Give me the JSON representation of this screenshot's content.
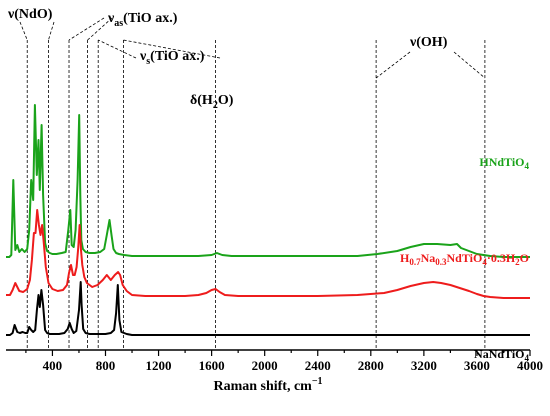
{
  "chart_data": {
    "type": "line",
    "xlabel": "Raman shift, cm",
    "xlabel_sup": "−1",
    "xlim": [
      50,
      4000
    ],
    "xticks": [
      400,
      800,
      1200,
      1600,
      2000,
      2400,
      2800,
      3200,
      3600,
      4000
    ],
    "y_axis_visible": false,
    "grid": false,
    "annotations": [
      {
        "id": "nu-ndo",
        "base": "ν(NdO)",
        "sub": "",
        "suffix": "",
        "guides": [
          210,
          370
        ]
      },
      {
        "id": "nu-as",
        "base": "ν",
        "sub": "as",
        "suffix": "(TiO ax.)",
        "guides": [
          525,
          665
        ]
      },
      {
        "id": "nu-s",
        "base": "ν",
        "sub": "s",
        "suffix": "(TiO ax.)",
        "guides": [
          745,
          935
        ]
      },
      {
        "id": "delta-h2o",
        "base": "δ(H",
        "sub": "2",
        "suffix": "O)",
        "guides": [
          1630
        ]
      },
      {
        "id": "nu-oh",
        "base": "ν(OH)",
        "sub": "",
        "suffix": "",
        "guides": [
          2840,
          3660
        ]
      }
    ],
    "series": [
      {
        "id": "hndtio4",
        "color": "#1aa31a",
        "label_parts": [
          "HNdTiO",
          "4"
        ],
        "x": [
          50,
          75,
          90,
          105,
          120,
          135,
          150,
          170,
          190,
          210,
          225,
          240,
          255,
          268,
          282,
          295,
          305,
          318,
          330,
          345,
          360,
          380,
          400,
          430,
          470,
          500,
          520,
          535,
          545,
          560,
          575,
          590,
          602,
          610,
          618,
          630,
          650,
          680,
          720,
          760,
          790,
          810,
          830,
          845,
          860,
          880,
          900,
          940,
          1000,
          1100,
          1300,
          1500,
          1600,
          1640,
          1680,
          1750,
          2000,
          2400,
          2700,
          2850,
          3000,
          3100,
          3200,
          3300,
          3400,
          3450,
          3480,
          3520,
          3560,
          3600,
          3650,
          3700,
          3800,
          4000
        ],
        "y": [
          0.78,
          0.78,
          0.8,
          1.55,
          0.85,
          0.9,
          0.83,
          0.86,
          0.83,
          0.86,
          1.05,
          1.55,
          1.35,
          2.3,
          1.6,
          1.95,
          1.45,
          2.1,
          1.4,
          0.92,
          0.84,
          0.82,
          0.81,
          0.81,
          0.82,
          0.83,
          1.05,
          1.25,
          0.9,
          0.88,
          1.05,
          1.55,
          2.2,
          1.4,
          0.95,
          0.86,
          0.83,
          0.82,
          0.82,
          0.83,
          0.86,
          1.0,
          1.15,
          1.0,
          0.86,
          0.82,
          0.81,
          0.8,
          0.79,
          0.79,
          0.79,
          0.79,
          0.8,
          0.82,
          0.8,
          0.79,
          0.79,
          0.79,
          0.79,
          0.81,
          0.84,
          0.88,
          0.91,
          0.91,
          0.9,
          0.91,
          0.87,
          0.85,
          0.83,
          0.81,
          0.8,
          0.79,
          0.78,
          0.78
        ]
      },
      {
        "id": "h07na03",
        "color": "#ee1c1c",
        "label_parts": [
          "H",
          "0.7",
          "Na",
          "0.3",
          "NdTiO",
          "4",
          "·0.3H",
          "2",
          "O"
        ],
        "x": [
          50,
          80,
          100,
          120,
          150,
          180,
          210,
          230,
          245,
          260,
          272,
          285,
          298,
          310,
          322,
          335,
          350,
          370,
          400,
          440,
          480,
          510,
          525,
          540,
          555,
          568,
          582,
          595,
          605,
          615,
          625,
          640,
          660,
          700,
          740,
          780,
          810,
          840,
          870,
          895,
          910,
          930,
          960,
          1000,
          1100,
          1200,
          1300,
          1400,
          1500,
          1560,
          1600,
          1630,
          1660,
          1700,
          1800,
          2000,
          2400,
          2700,
          2900,
          3000,
          3100,
          3200,
          3270,
          3330,
          3400,
          3470,
          3540,
          3600,
          3650,
          3700,
          3800,
          4000
        ],
        "y": [
          0.4,
          0.4,
          0.45,
          0.52,
          0.44,
          0.43,
          0.46,
          0.55,
          0.75,
          1.02,
          1.02,
          1.25,
          1.1,
          1.0,
          1.1,
          0.92,
          0.68,
          0.52,
          0.46,
          0.44,
          0.45,
          0.5,
          0.62,
          0.7,
          0.6,
          0.6,
          0.68,
          0.88,
          1.1,
          0.85,
          0.7,
          0.58,
          0.52,
          0.48,
          0.5,
          0.55,
          0.6,
          0.55,
          0.6,
          0.63,
          0.6,
          0.5,
          0.44,
          0.4,
          0.39,
          0.39,
          0.39,
          0.39,
          0.4,
          0.42,
          0.45,
          0.46,
          0.43,
          0.4,
          0.39,
          0.39,
          0.39,
          0.4,
          0.42,
          0.45,
          0.49,
          0.52,
          0.53,
          0.52,
          0.5,
          0.47,
          0.44,
          0.41,
          0.39,
          0.38,
          0.37,
          0.37
        ]
      },
      {
        "id": "nandtio4",
        "color": "#000000",
        "label_parts": [
          "NaNdTiO",
          "4"
        ],
        "x": [
          50,
          80,
          100,
          115,
          135,
          155,
          175,
          195,
          210,
          225,
          240,
          255,
          270,
          283,
          295,
          305,
          317,
          330,
          345,
          360,
          380,
          410,
          450,
          490,
          515,
          530,
          545,
          560,
          580,
          600,
          613,
          620,
          632,
          650,
          680,
          720,
          760,
          800,
          840,
          865,
          880,
          893,
          905,
          920,
          960,
          1000,
          1100,
          1200,
          1400,
          1600,
          2000,
          2400,
          2800,
          3200,
          3600,
          4000
        ],
        "y": [
          0.0,
          0.0,
          0.02,
          0.1,
          0.03,
          0.02,
          0.03,
          0.02,
          0.02,
          0.08,
          0.05,
          0.03,
          0.05,
          0.25,
          0.4,
          0.28,
          0.45,
          0.3,
          0.05,
          0.02,
          0.01,
          0.01,
          0.01,
          0.02,
          0.06,
          0.12,
          0.06,
          0.02,
          0.04,
          0.25,
          0.53,
          0.3,
          0.06,
          0.02,
          0.01,
          0.01,
          0.01,
          0.01,
          0.02,
          0.05,
          0.22,
          0.5,
          0.15,
          0.03,
          0.01,
          0.0,
          0.0,
          0.0,
          0.0,
          0.0,
          0.0,
          0.0,
          0.0,
          0.0,
          0.0,
          0.0
        ]
      }
    ]
  }
}
